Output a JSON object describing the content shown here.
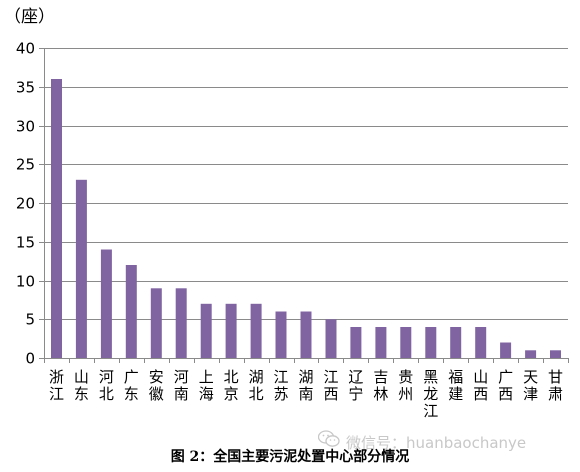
{
  "chart_data": {
    "type": "bar",
    "unit_label": "（座）",
    "categories": [
      "浙江",
      "山东",
      "河北",
      "广东",
      "安徽",
      "河南",
      "上海",
      "北京",
      "湖北",
      "江苏",
      "湖南",
      "江西",
      "辽宁",
      "吉林",
      "贵州",
      "黑龙江",
      "福建",
      "山西",
      "广西",
      "天津",
      "甘肃"
    ],
    "values": [
      36,
      23,
      14,
      12,
      9,
      9,
      7,
      7,
      7,
      6,
      6,
      5,
      4,
      4,
      4,
      4,
      4,
      4,
      2,
      1,
      1
    ],
    "ylim": [
      0,
      40
    ],
    "yticks": [
      0,
      5,
      10,
      15,
      20,
      25,
      30,
      35,
      40
    ],
    "grid": true,
    "bar_color": "#8064a2",
    "caption": "图 2：全国主要污泥处置中心部分情况"
  },
  "watermark": {
    "text": "微信号：huanbaochanye",
    "icon": "wechat-icon"
  }
}
